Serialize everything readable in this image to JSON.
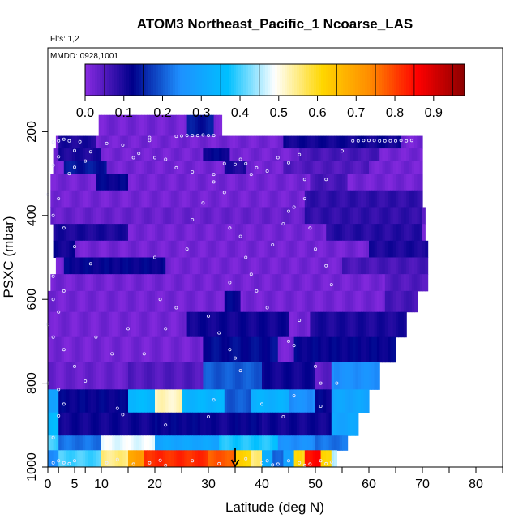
{
  "chart_data": {
    "type": "heatmap",
    "title": "ATOM3 Northeast_Pacific_1 Ncoarse_LAS",
    "flights_label": "Flts: 1,2",
    "date_label": "MMDD: 0928,1001",
    "xlabel": "Latitude (deg N)",
    "ylabel": "PSXC (mbar)",
    "xlim": [
      0,
      85
    ],
    "ylim": [
      1000,
      0
    ],
    "x_ticks": [
      0,
      2,
      5,
      7,
      10,
      15,
      20,
      25,
      30,
      35,
      40,
      45,
      50,
      55,
      60,
      65,
      70,
      75,
      80,
      85
    ],
    "x_tick_labels": [
      {
        "value": 0,
        "label": "0"
      },
      {
        "value": 5,
        "label": "5"
      },
      {
        "value": 10,
        "label": "10"
      },
      {
        "value": 20,
        "label": "20"
      },
      {
        "value": 30,
        "label": "30"
      },
      {
        "value": 40,
        "label": "40"
      },
      {
        "value": 50,
        "label": "50"
      },
      {
        "value": 60,
        "label": "60"
      },
      {
        "value": 70,
        "label": "70"
      },
      {
        "value": 80,
        "label": "80"
      }
    ],
    "y_tick_labels": [
      {
        "value": 200,
        "label": "200"
      },
      {
        "value": 400,
        "label": "400"
      },
      {
        "value": 600,
        "label": "600"
      },
      {
        "value": 800,
        "label": "800"
      },
      {
        "value": 1000,
        "label": "1000"
      }
    ],
    "colorbar": {
      "range": [
        0,
        0.98
      ],
      "tick_labels": [
        {
          "value": 0.0,
          "label": "0.0"
        },
        {
          "value": 0.1,
          "label": "0.1"
        },
        {
          "value": 0.2,
          "label": "0.2"
        },
        {
          "value": 0.3,
          "label": "0.3"
        },
        {
          "value": 0.4,
          "label": "0.4"
        },
        {
          "value": 0.5,
          "label": "0.5"
        },
        {
          "value": 0.6,
          "label": "0.6"
        },
        {
          "value": 0.7,
          "label": "0.7"
        },
        {
          "value": 0.8,
          "label": "0.8"
        },
        {
          "value": 0.9,
          "label": "0.9"
        }
      ],
      "colors": [
        "#8a2be2",
        "#00008b",
        "#1e90ff",
        "#00bfff",
        "#ffffff",
        "#ffd700",
        "#ff8c00",
        "#ff0000",
        "#8b0000"
      ]
    },
    "marker_latitude": 35,
    "bands": [
      {
        "p_top": 160,
        "p_bot": 210,
        "x0": 9.5,
        "x1": 32.5,
        "base": 0.02,
        "patches": [
          [
            26,
            31,
            0.14
          ]
        ]
      },
      {
        "p_top": 210,
        "p_bot": 240,
        "x0": 1.5,
        "x1": 70,
        "base": 0.02,
        "patches": [
          [
            2,
            9,
            0.1
          ],
          [
            44,
            66,
            0.11
          ]
        ]
      },
      {
        "p_top": 240,
        "p_bot": 270,
        "x0": 1,
        "x1": 70,
        "base": 0.02,
        "patches": [
          [
            2,
            10,
            0.1
          ],
          [
            29,
            34,
            0.12
          ],
          [
            47,
            62,
            0.06
          ]
        ]
      },
      {
        "p_top": 270,
        "p_bot": 300,
        "x0": 1,
        "x1": 70,
        "base": 0.02,
        "patches": [
          [
            3,
            11,
            0.14
          ],
          [
            33,
            37,
            0.1
          ],
          [
            44,
            60,
            0.05
          ]
        ]
      },
      {
        "p_top": 300,
        "p_bot": 340,
        "x0": 0.5,
        "x1": 70,
        "base": 0.02,
        "patches": [
          [
            9,
            15,
            0.12
          ],
          [
            49,
            56,
            0.06
          ]
        ]
      },
      {
        "p_top": 340,
        "p_bot": 380,
        "x0": 0.5,
        "x1": 70,
        "base": 0.02,
        "patches": [
          [
            48,
            70,
            0.08
          ]
        ]
      },
      {
        "p_top": 380,
        "p_bot": 420,
        "x0": 0.5,
        "x1": 70.5,
        "base": 0.03,
        "patches": [
          [
            48,
            70,
            0.08
          ]
        ]
      },
      {
        "p_top": 420,
        "p_bot": 460,
        "x0": 1,
        "x1": 70.5,
        "base": 0.02,
        "patches": [
          [
            1,
            15,
            0.1
          ],
          [
            52,
            70,
            0.09
          ]
        ]
      },
      {
        "p_top": 460,
        "p_bot": 500,
        "x0": 1,
        "x1": 71,
        "base": 0.02,
        "patches": [
          [
            1,
            5,
            0.11
          ],
          [
            60,
            71,
            0.1
          ]
        ]
      },
      {
        "p_top": 500,
        "p_bot": 540,
        "x0": 1.5,
        "x1": 71,
        "base": 0.02,
        "patches": [
          [
            3,
            22,
            0.12
          ],
          [
            55,
            71,
            0.06
          ]
        ]
      },
      {
        "p_top": 540,
        "p_bot": 580,
        "x0": 0.5,
        "x1": 71,
        "base": 0.02,
        "patches": [
          [
            63,
            71,
            0.05
          ]
        ]
      },
      {
        "p_top": 580,
        "p_bot": 630,
        "x0": 0,
        "x1": 69,
        "base": 0.02,
        "patches": [
          [
            33,
            36,
            0.12
          ],
          [
            63,
            69,
            0.06
          ]
        ]
      },
      {
        "p_top": 630,
        "p_bot": 690,
        "x0": 0,
        "x1": 67,
        "base": 0.02,
        "patches": [
          [
            26,
            45,
            0.11
          ],
          [
            49,
            67,
            0.1
          ]
        ]
      },
      {
        "p_top": 690,
        "p_bot": 750,
        "x0": 0,
        "x1": 65,
        "base": 0.02,
        "patches": [
          [
            29,
            43,
            0.13
          ],
          [
            46,
            65,
            0.12
          ]
        ]
      },
      {
        "p_top": 750,
        "p_bot": 815,
        "x0": 0,
        "x1": 62,
        "base": 0.03,
        "patches": [
          [
            15,
            29,
            0.05
          ],
          [
            29,
            40,
            0.2
          ],
          [
            40,
            50,
            0.11
          ],
          [
            50,
            53,
            0.04
          ],
          [
            53,
            62,
            0.25
          ]
        ]
      },
      {
        "p_top": 815,
        "p_bot": 870,
        "x0": 0,
        "x1": 60,
        "base": 0.12,
        "patches": [
          [
            0,
            2,
            0.3
          ],
          [
            15,
            20,
            0.35
          ],
          [
            20,
            25,
            0.52
          ],
          [
            25,
            33,
            0.34
          ],
          [
            33,
            38,
            0.2
          ],
          [
            38,
            45,
            0.33
          ],
          [
            45,
            50,
            0.25
          ],
          [
            53,
            60,
            0.3
          ]
        ]
      },
      {
        "p_top": 870,
        "p_bot": 925,
        "x0": 0,
        "x1": 58,
        "base": 0.11,
        "patches": [
          [
            0,
            2,
            0.35
          ],
          [
            20,
            30,
            0.12
          ],
          [
            35,
            40,
            0.12
          ],
          [
            53,
            58,
            0.3
          ]
        ]
      },
      {
        "p_top": 925,
        "p_bot": 960,
        "x0": 0,
        "x1": 56,
        "base": 0.22,
        "patches": [
          [
            0,
            2,
            0.4
          ],
          [
            10,
            20,
            0.48
          ],
          [
            20,
            32,
            0.3
          ],
          [
            32,
            43,
            0.38
          ],
          [
            43,
            50,
            0.25
          ]
        ]
      },
      {
        "p_top": 960,
        "p_bot": 1000,
        "x0": 0,
        "x1": 54,
        "base": 0.8,
        "patches": [
          [
            0,
            2,
            0.25
          ],
          [
            2,
            10,
            0.4
          ],
          [
            10,
            15,
            0.55
          ],
          [
            15,
            18,
            0.7
          ],
          [
            18,
            30,
            0.82
          ],
          [
            30,
            35,
            0.78
          ],
          [
            35,
            38,
            0.62
          ],
          [
            38,
            40,
            0.55
          ],
          [
            40,
            42,
            0.33
          ],
          [
            42,
            44,
            0.2
          ],
          [
            44,
            46,
            0.3
          ],
          [
            46,
            48,
            0.6
          ],
          [
            48,
            51,
            0.85
          ],
          [
            51,
            53,
            0.62
          ],
          [
            53,
            54,
            0.45
          ]
        ]
      }
    ],
    "observations": [
      [
        1,
        225
      ],
      [
        2,
        222
      ],
      [
        3,
        218
      ],
      [
        4,
        222
      ],
      [
        6,
        224
      ],
      [
        2,
        260
      ],
      [
        4,
        300
      ],
      [
        5,
        245
      ],
      [
        8,
        248
      ],
      [
        7,
        270
      ],
      [
        1,
        280
      ],
      [
        5,
        285
      ],
      [
        11,
        228
      ],
      [
        14,
        232
      ],
      [
        17,
        252
      ],
      [
        20,
        262
      ],
      [
        19,
        221
      ],
      [
        19,
        214
      ],
      [
        24,
        211
      ],
      [
        25,
        210
      ],
      [
        26,
        209
      ],
      [
        27,
        209
      ],
      [
        28,
        209
      ],
      [
        29,
        208
      ],
      [
        30,
        209
      ],
      [
        31,
        209
      ],
      [
        16,
        262
      ],
      [
        22,
        266
      ],
      [
        24,
        286
      ],
      [
        27,
        296
      ],
      [
        31,
        302
      ],
      [
        36,
        266
      ],
      [
        37,
        276
      ],
      [
        35,
        278
      ],
      [
        33,
        276
      ],
      [
        38,
        302
      ],
      [
        39,
        286
      ],
      [
        41,
        294
      ],
      [
        43,
        262
      ],
      [
        45,
        274
      ],
      [
        47,
        255
      ],
      [
        48,
        314
      ],
      [
        52,
        314
      ],
      [
        55,
        246
      ],
      [
        57,
        222
      ],
      [
        58,
        222
      ],
      [
        59,
        221
      ],
      [
        60,
        221
      ],
      [
        61,
        221
      ],
      [
        62,
        222
      ],
      [
        63,
        222
      ],
      [
        64,
        222
      ],
      [
        65,
        222
      ],
      [
        66,
        221
      ],
      [
        67,
        222
      ],
      [
        68,
        221
      ],
      [
        0,
        350
      ],
      [
        2,
        360
      ],
      [
        1,
        400
      ],
      [
        3,
        430
      ],
      [
        5,
        474
      ],
      [
        8,
        515
      ],
      [
        1,
        545
      ],
      [
        3,
        580
      ],
      [
        1,
        600
      ],
      [
        2,
        630
      ],
      [
        0,
        660
      ],
      [
        1,
        690
      ],
      [
        3,
        720
      ],
      [
        5,
        760
      ],
      [
        7,
        795
      ],
      [
        0,
        800
      ],
      [
        2,
        815
      ],
      [
        3,
        850
      ],
      [
        2,
        878
      ],
      [
        1,
        930
      ],
      [
        9,
        690
      ],
      [
        12,
        730
      ],
      [
        15,
        670
      ],
      [
        18,
        730
      ],
      [
        22,
        670
      ],
      [
        21,
        600
      ],
      [
        24,
        620
      ],
      [
        20,
        500
      ],
      [
        26,
        480
      ],
      [
        27,
        410
      ],
      [
        29,
        370
      ],
      [
        31,
        320
      ],
      [
        33,
        345
      ],
      [
        34,
        430
      ],
      [
        36,
        450
      ],
      [
        37,
        500
      ],
      [
        34,
        560
      ],
      [
        38,
        540
      ],
      [
        39,
        580
      ],
      [
        41,
        620
      ],
      [
        42,
        470
      ],
      [
        44,
        420
      ],
      [
        45,
        390
      ],
      [
        46,
        380
      ],
      [
        48,
        360
      ],
      [
        49,
        430
      ],
      [
        50,
        480
      ],
      [
        52,
        520
      ],
      [
        53,
        565
      ],
      [
        47,
        650
      ],
      [
        45,
        700
      ],
      [
        46,
        710
      ],
      [
        50,
        760
      ],
      [
        51,
        800
      ],
      [
        30,
        640
      ],
      [
        32,
        680
      ],
      [
        34,
        720
      ],
      [
        35,
        740
      ],
      [
        36,
        770
      ],
      [
        31,
        840
      ],
      [
        30,
        880
      ],
      [
        14,
        875
      ],
      [
        13,
        860
      ],
      [
        22,
        900
      ],
      [
        40,
        850
      ],
      [
        44,
        880
      ],
      [
        46,
        830
      ],
      [
        51,
        855
      ],
      [
        54,
        800
      ],
      [
        1,
        990
      ],
      [
        2,
        985
      ],
      [
        3,
        990
      ],
      [
        4,
        992
      ],
      [
        5,
        985
      ],
      [
        11,
        990
      ],
      [
        13,
        982
      ],
      [
        16,
        993
      ],
      [
        19,
        990
      ],
      [
        21,
        984
      ],
      [
        22,
        996
      ],
      [
        27,
        985
      ],
      [
        32,
        992
      ],
      [
        37,
        980
      ],
      [
        40,
        990
      ],
      [
        41,
        985
      ],
      [
        42,
        995
      ],
      [
        43,
        993
      ],
      [
        45,
        985
      ],
      [
        47,
        990
      ],
      [
        48,
        996
      ],
      [
        49,
        993
      ],
      [
        51,
        985
      ],
      [
        52,
        992
      ],
      [
        53,
        988
      ]
    ]
  }
}
